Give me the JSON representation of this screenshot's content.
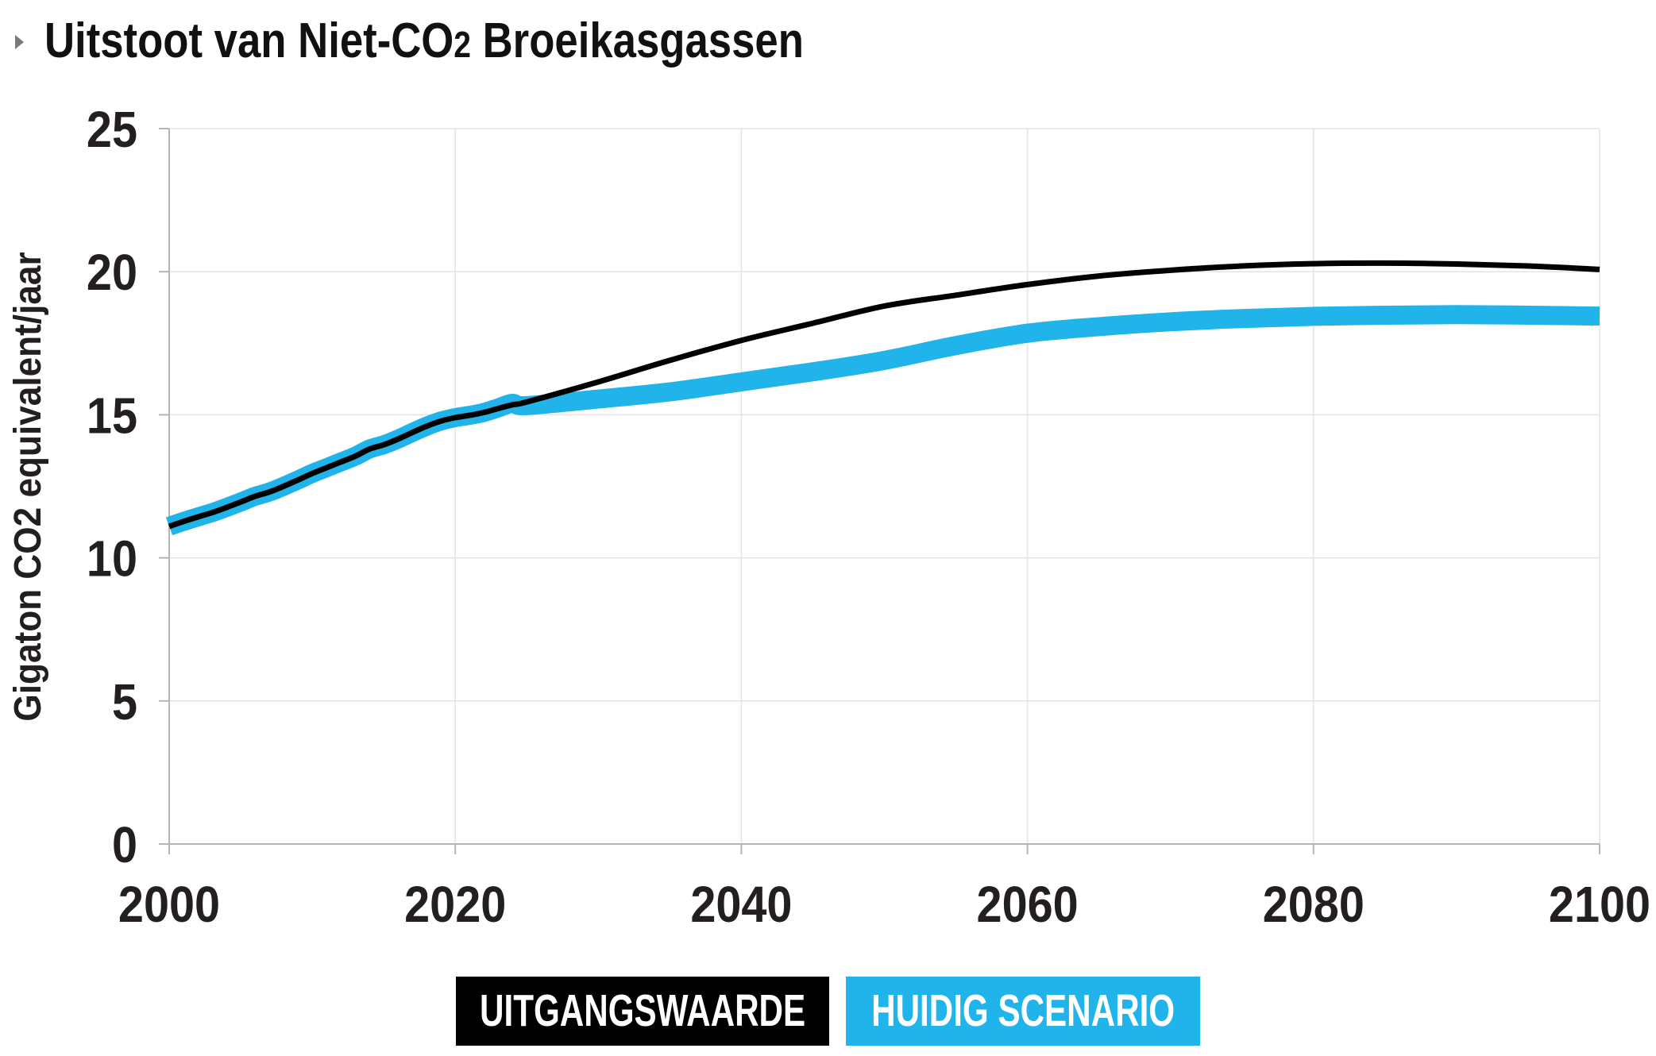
{
  "title_icon": "disclosure-triangle-icon",
  "chart_data": {
    "type": "line",
    "title": "Uitstoot van Niet-CO2 Broeikasgassen",
    "ylabel": "Gigaton CO2 equivalent/jaar",
    "xlim": [
      2000,
      2100
    ],
    "ylim": [
      0,
      25
    ],
    "xticks": [
      2000,
      2020,
      2040,
      2060,
      2080,
      2100
    ],
    "yticks": [
      0,
      5,
      10,
      15,
      20,
      25
    ],
    "grid": true,
    "legend": "bottom-center",
    "x": [
      2000,
      2001,
      2002,
      2003,
      2004,
      2005,
      2006,
      2007,
      2008,
      2009,
      2010,
      2011,
      2012,
      2013,
      2014,
      2015,
      2016,
      2017,
      2018,
      2019,
      2020,
      2021,
      2022,
      2023,
      2024,
      2025,
      2030,
      2035,
      2040,
      2045,
      2050,
      2055,
      2060,
      2065,
      2070,
      2075,
      2080,
      2085,
      2090,
      2095,
      2100
    ],
    "series": [
      {
        "name": "UITGANGSWAARDE",
        "color": "#000000",
        "values": [
          11.1,
          11.27,
          11.43,
          11.58,
          11.76,
          11.95,
          12.15,
          12.3,
          12.5,
          12.72,
          12.95,
          13.15,
          13.35,
          13.55,
          13.8,
          13.95,
          14.15,
          14.38,
          14.6,
          14.78,
          14.9,
          14.98,
          15.08,
          15.22,
          15.35,
          15.45,
          16.15,
          16.9,
          17.6,
          18.2,
          18.8,
          19.18,
          19.55,
          19.85,
          20.05,
          20.2,
          20.28,
          20.3,
          20.27,
          20.2,
          20.08
        ]
      },
      {
        "name": "HUIDIG SCENARIO",
        "color": "#20B4EA",
        "values": [
          11.1,
          11.27,
          11.43,
          11.58,
          11.76,
          11.95,
          12.15,
          12.3,
          12.5,
          12.72,
          12.95,
          13.15,
          13.35,
          13.55,
          13.8,
          13.95,
          14.15,
          14.38,
          14.6,
          14.78,
          14.9,
          14.98,
          15.08,
          15.24,
          15.4,
          15.32,
          15.55,
          15.8,
          16.15,
          16.5,
          16.9,
          17.42,
          17.85,
          18.08,
          18.25,
          18.36,
          18.44,
          18.48,
          18.5,
          18.48,
          18.45
        ]
      }
    ]
  }
}
